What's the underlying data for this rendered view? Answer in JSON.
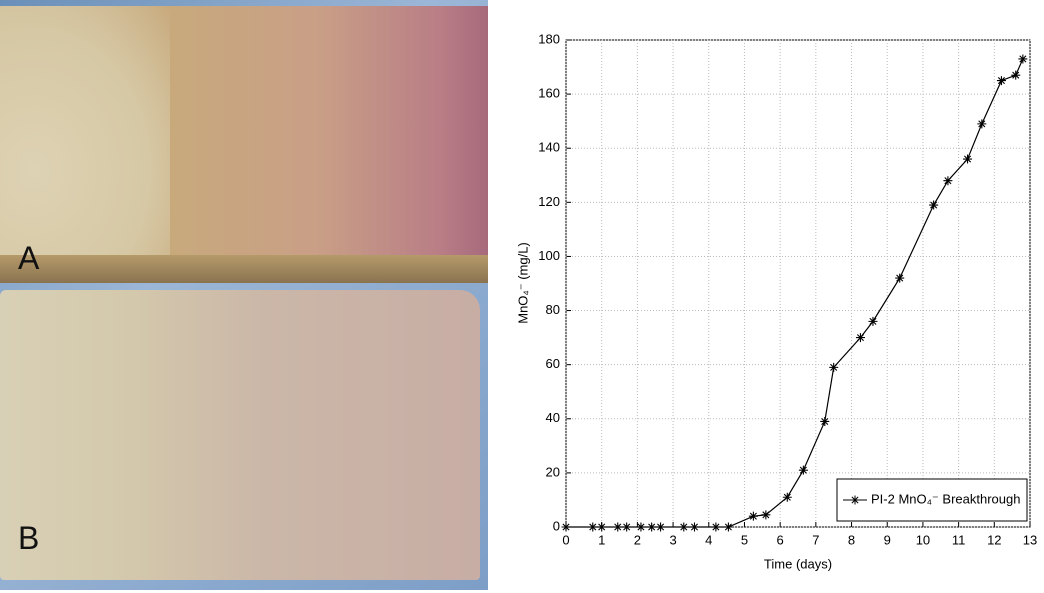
{
  "photo": {
    "labels": [
      "A",
      "B"
    ]
  },
  "chart_data": {
    "type": "line",
    "x": [
      0,
      0.75,
      1.0,
      1.45,
      1.7,
      2.1,
      2.4,
      2.65,
      3.3,
      3.6,
      4.2,
      4.55,
      5.25,
      5.6,
      6.2,
      6.65,
      7.25,
      7.5,
      8.25,
      8.6,
      9.35,
      10.3,
      10.7,
      11.25,
      11.65,
      12.2,
      12.6,
      12.8
    ],
    "series": [
      {
        "name": "PI-2 MnO₄⁻ Breakthrough",
        "color": "#000000",
        "values": [
          0,
          0,
          0,
          0,
          0,
          0,
          0,
          0,
          0,
          0,
          0,
          0,
          4,
          4.5,
          11,
          21,
          39,
          59,
          70,
          76,
          92,
          119,
          128,
          136,
          149,
          165,
          167,
          173
        ]
      }
    ],
    "xlabel": "Time (days)",
    "ylabel": "MnO₄⁻ (mg/L)",
    "xlim": [
      0,
      13
    ],
    "xticks": [
      0,
      1,
      2,
      3,
      4,
      5,
      6,
      7,
      8,
      9,
      10,
      11,
      12,
      13
    ],
    "ylim": [
      0,
      180
    ],
    "yticks": [
      0,
      20,
      40,
      60,
      80,
      100,
      120,
      140,
      160,
      180
    ],
    "grid": true,
    "legend": "lower right"
  }
}
